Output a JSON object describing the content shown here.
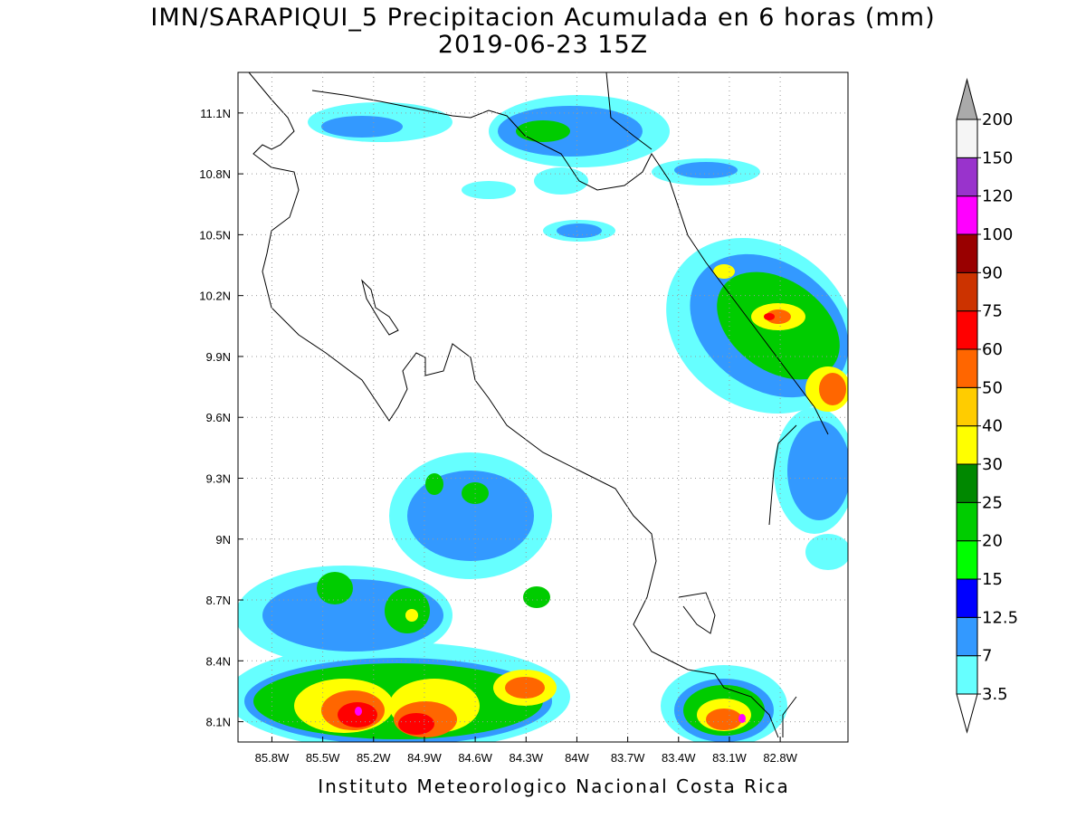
{
  "chart_data": {
    "type": "map",
    "title": "IMN/SARAPIQUI_5 Precipitacion Acumulada en 6 horas (mm)",
    "subtitle": "2019-06-23 15Z",
    "footer": "Instituto Meteorologico Nacional Costa Rica",
    "xlim": [
      -86.0,
      -82.4
    ],
    "ylim": [
      8.0,
      11.3
    ],
    "xticks": [
      {
        "value": -85.8,
        "label": "85.8W"
      },
      {
        "value": -85.5,
        "label": "85.5W"
      },
      {
        "value": -85.2,
        "label": "85.2W"
      },
      {
        "value": -84.9,
        "label": "84.9W"
      },
      {
        "value": -84.6,
        "label": "84.6W"
      },
      {
        "value": -84.3,
        "label": "84.3W"
      },
      {
        "value": -84.0,
        "label": "84W"
      },
      {
        "value": -83.7,
        "label": "83.7W"
      },
      {
        "value": -83.4,
        "label": "83.4W"
      },
      {
        "value": -83.1,
        "label": "83.1W"
      },
      {
        "value": -82.8,
        "label": "82.8W"
      }
    ],
    "yticks": [
      {
        "value": 8.1,
        "label": "8.1N"
      },
      {
        "value": 8.4,
        "label": "8.4N"
      },
      {
        "value": 8.7,
        "label": "8.7N"
      },
      {
        "value": 9.0,
        "label": "9N"
      },
      {
        "value": 9.3,
        "label": "9.3N"
      },
      {
        "value": 9.6,
        "label": "9.6N"
      },
      {
        "value": 9.9,
        "label": "9.9N"
      },
      {
        "value": 10.2,
        "label": "10.2N"
      },
      {
        "value": 10.5,
        "label": "10.5N"
      },
      {
        "value": 10.8,
        "label": "10.8N"
      },
      {
        "value": 11.1,
        "label": "11.1N"
      }
    ],
    "grid": true,
    "colorbar": {
      "levels": [
        3.5,
        7,
        12.5,
        15,
        20,
        25,
        30,
        40,
        50,
        60,
        75,
        90,
        100,
        120,
        150,
        200
      ],
      "colors": [
        "#66ffff",
        "#3399ff",
        "#0000ff",
        "#00ff00",
        "#00cc00",
        "#008800",
        "#ffff00",
        "#ffcc00",
        "#ff6600",
        "#ff0000",
        "#cc3300",
        "#990000",
        "#ff00ff",
        "#9933cc",
        "#f5f5f5"
      ],
      "under_color": "#ffffff",
      "over_color": "#aaaaaa"
    }
  }
}
